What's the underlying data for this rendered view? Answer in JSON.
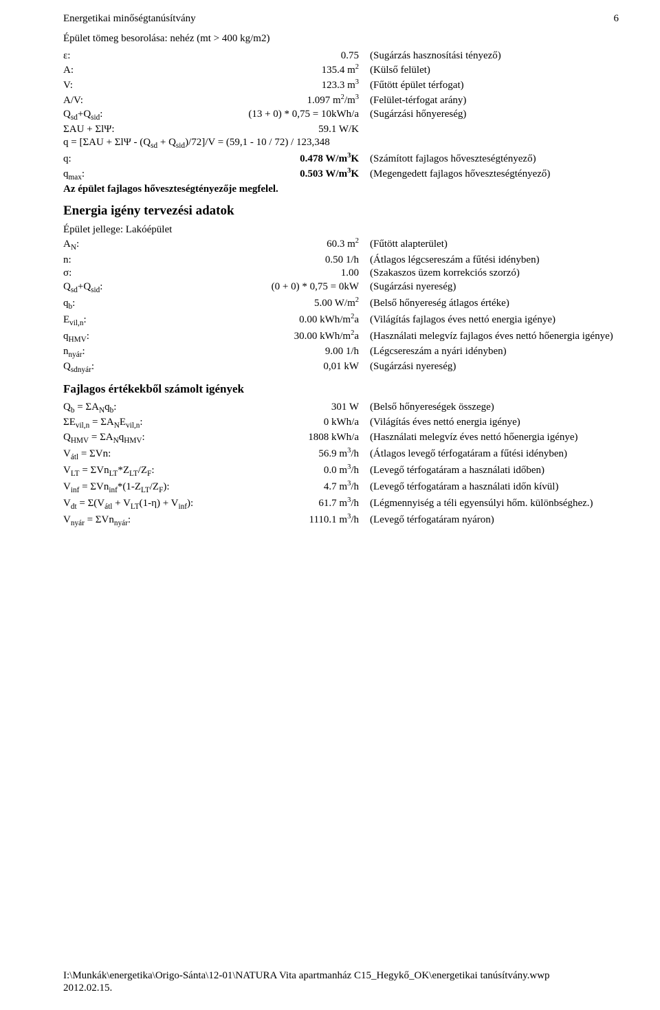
{
  "header": {
    "title": "Energetikai minőségtanúsítvány",
    "page_number": "6"
  },
  "classification": {
    "line": "Épület tömeg besorolása: nehéz (mt > 400 kg/m2)",
    "rows": [
      {
        "label": "ε:",
        "value": "0.75",
        "desc": "(Sugárzás hasznosítási tényező)"
      },
      {
        "label": "A:",
        "value_html": "135.4 m<sup>2</sup>",
        "desc": "(Külső felület)"
      },
      {
        "label": "V:",
        "value_html": "123.3 m<sup>3</sup>",
        "desc": "(Fűtött épület térfogat)"
      },
      {
        "label": "A/V:",
        "value_html": "1.097 m<sup>2</sup>/m<sup>3</sup>",
        "desc": "(Felület-térfogat arány)"
      },
      {
        "label_html": "Q<sub>sd</sub>+Q<sub>sid</sub>:",
        "value": "(13 + 0) * 0,75 = 10kWh/a",
        "desc": "(Sugárzási hőnyereség)"
      },
      {
        "label": "ΣAU + ΣlΨ:",
        "value": "59.1 W/K",
        "desc": ""
      }
    ],
    "qformula_html": "q = [ΣAU + ΣlΨ - (Q<sub>sd</sub> + Q<sub>sid</sub>)/72]/V = (59,1 - 10 / 72) / 123,348",
    "qrows": [
      {
        "label": "q:",
        "value_html": "0.478 W/m<sup>3</sup>K",
        "value_bold": true,
        "desc": "(Számított fajlagos hőveszteségtényező)"
      },
      {
        "label_html": "q<sub>max</sub>:",
        "value_html": "0.503 W/m<sup>3</sup>K",
        "value_bold": true,
        "desc": "(Megengedett fajlagos hőveszteségtényező)"
      }
    ],
    "verdict": "Az épület fajlagos hőveszteségtényezője megfelel."
  },
  "energy_design": {
    "title": "Energia igény tervezési adatok",
    "subtitle": "Épület jellege: Lakóépület",
    "rows": [
      {
        "label_html": "A<sub>N</sub>:",
        "value_html": "60.3 m<sup>2</sup>",
        "desc": "(Fűtött alapterület)"
      },
      {
        "label": "n:",
        "value": "0.50 1/h",
        "desc": "(Átlagos légcsereszám a fűtési idényben)"
      },
      {
        "label": "σ:",
        "value": "1.00",
        "desc": "(Szakaszos üzem korrekciós szorzó)"
      },
      {
        "label_html": "Q<sub>sd</sub>+Q<sub>sid</sub>:",
        "value": "(0 + 0) * 0,75 = 0kW",
        "desc": "(Sugárzási nyereség)"
      },
      {
        "label_html": "q<sub>b</sub>:",
        "value_html": "5.00 W/m<sup>2</sup>",
        "desc": "(Belső hőnyereség átlagos értéke)"
      },
      {
        "label_html": "E<sub>vil,n</sub>:",
        "value_html": "0.00 kWh/m<sup>2</sup>a",
        "desc": "(Világítás fajlagos éves nettó energia igénye)"
      },
      {
        "label_html": "q<sub>HMV</sub>:",
        "value_html": "30.00 kWh/m<sup>2</sup>a",
        "desc": "(Használati melegvíz fajlagos éves nettó hőenergia igénye)"
      },
      {
        "label_html": "n<sub>nyár</sub>:",
        "value": "9.00 1/h",
        "desc": "(Légcsereszám a nyári idényben)"
      },
      {
        "label_html": "Q<sub>sdnyár</sub>:",
        "value": "0,01 kW",
        "desc": "(Sugárzási nyereség)"
      }
    ]
  },
  "specific_demand": {
    "title": "Fajlagos értékekből számolt igények",
    "rows": [
      {
        "label_html": "Q<sub>b</sub> = ΣA<sub>N</sub>q<sub>b</sub>:",
        "value": "301 W",
        "desc": "(Belső hőnyereségek összege)"
      },
      {
        "label_html": "ΣE<sub>vil,n</sub> = ΣA<sub>N</sub>E<sub>vil,n</sub>:",
        "value": "0 kWh/a",
        "desc": "(Világítás éves nettó energia igénye)"
      },
      {
        "label_html": "Q<sub>HMV</sub> = ΣA<sub>N</sub>q<sub>HMV</sub>:",
        "value": "1808 kWh/a",
        "desc": "(Használati melegvíz éves nettó hőenergia igénye)"
      },
      {
        "label_html": "V<sub>átl</sub> = ΣVn:",
        "value_html": "56.9 m<sup>3</sup>/h",
        "desc": "(Átlagos levegő térfogatáram a fűtési idényben)"
      },
      {
        "label_html": "V<sub>LT</sub> = ΣVn<sub>LT</sub>*Z<sub>LT</sub>/Z<sub>F</sub>:",
        "value_html": "0.0 m<sup>3</sup>/h",
        "desc": "(Levegő térfogatáram a használati időben)"
      },
      {
        "label_html": "V<sub>inf</sub> = ΣVn<sub>inf</sub>*(1-Z<sub>LT</sub>/Z<sub>F</sub>):",
        "value_html": "4.7 m<sup>3</sup>/h",
        "desc": "(Levegő térfogatáram a használati időn kívül)"
      },
      {
        "label_html": "V<sub>dt</sub> = Σ(V<sub>átl</sub> + V<sub>LT</sub>(1-η) + V<sub>inf</sub>):",
        "value_html": "61.7 m<sup>3</sup>/h",
        "desc": "(Légmennyiség a téli egyensúlyi hőm. különbséghez.)"
      },
      {
        "label_html": "V<sub>nyár</sub> = ΣVn<sub>nyár</sub>:",
        "value_html": "1110.1 m<sup>3</sup>/h",
        "desc": "(Levegő térfogatáram nyáron)"
      }
    ]
  },
  "footer": {
    "path": "I:\\Munkák\\energetika\\Origo-Sánta\\12-01\\NATURA Vita apartmanház C15_Hegykő_OK\\energetikai tanúsítvány.wwp",
    "date": "2012.02.15."
  }
}
